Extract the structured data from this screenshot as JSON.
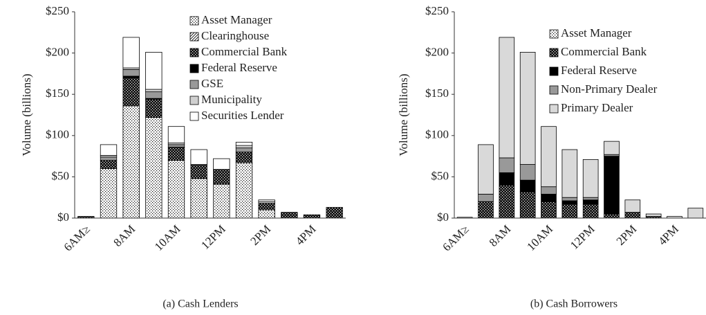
{
  "charts": [
    {
      "chart_data": {
        "type": "bar",
        "stacked": true,
        "title": "(a) Cash Lenders",
        "ylabel": "Volume (billions)",
        "categories": [
          "6AM≥",
          null,
          "8AM",
          null,
          "10AM",
          null,
          "12PM",
          null,
          "2PM",
          null,
          "4PM",
          null
        ],
        "ylim": [
          0,
          250
        ],
        "yticks": [
          {
            "value": 0,
            "label": "$0"
          },
          {
            "value": 50,
            "label": "$50"
          },
          {
            "value": 100,
            "label": "$100"
          },
          {
            "value": 150,
            "label": "$150"
          },
          {
            "value": 200,
            "label": "$200"
          },
          {
            "value": 250,
            "label": "$250"
          }
        ],
        "series": [
          {
            "name": "Asset Manager",
            "color": "#ffffff",
            "pattern": "dots",
            "values": [
              0,
              60,
              136,
              122,
              70,
              48,
              41,
              67,
              10,
              0,
              0,
              0
            ]
          },
          {
            "name": "Clearinghouse",
            "color": "#ffffff",
            "pattern": "hatch",
            "values": [
              0,
              0,
              0,
              0,
              0,
              0,
              0,
              0,
              0,
              0,
              0,
              0
            ]
          },
          {
            "name": "Commercial Bank",
            "color": "#111111",
            "pattern": "dots",
            "values": [
              2,
              10,
              34,
              22,
              16,
              16,
              18,
              13,
              8,
              7,
              4,
              13
            ]
          },
          {
            "name": "Federal Reserve",
            "color": "#000000",
            "values": [
              0,
              0,
              2,
              1,
              0,
              0,
              0,
              0,
              0,
              0,
              0,
              0
            ]
          },
          {
            "name": "GSE",
            "color": "#999999",
            "values": [
              0,
              4,
              8,
              8,
              3,
              0,
              0,
              5,
              0,
              0,
              0,
              0
            ]
          },
          {
            "name": "Municipality",
            "color": "#d0d0d0",
            "values": [
              0,
              2,
              2,
              3,
              2,
              1,
              0,
              3,
              2,
              0,
              0,
              0
            ]
          },
          {
            "name": "Securities Lender",
            "color": "#ffffff",
            "values": [
              0,
              13,
              37,
              45,
              20,
              18,
              13,
              4,
              2,
              0,
              0,
              0
            ]
          }
        ]
      }
    },
    {
      "chart_data": {
        "type": "bar",
        "stacked": true,
        "title": "(b) Cash Borrowers",
        "ylabel": "Volume (billions)",
        "categories": [
          "6AM≥",
          null,
          "8AM",
          null,
          "10AM",
          null,
          "12PM",
          null,
          "2PM",
          null,
          "4PM",
          null
        ],
        "ylim": [
          0,
          250
        ],
        "yticks": [
          {
            "value": 0,
            "label": "$0"
          },
          {
            "value": 50,
            "label": "$50"
          },
          {
            "value": 100,
            "label": "$100"
          },
          {
            "value": 150,
            "label": "$150"
          },
          {
            "value": 200,
            "label": "$200"
          },
          {
            "value": 250,
            "label": "$250"
          }
        ],
        "series": [
          {
            "name": "Asset Manager",
            "color": "#ffffff",
            "pattern": "dots",
            "values": [
              0,
              0,
              0,
              0,
              0,
              0,
              0,
              0,
              0,
              0,
              0,
              0
            ]
          },
          {
            "name": "Commercial Bank",
            "color": "#111111",
            "pattern": "dots",
            "values": [
              0,
              20,
              40,
              32,
              20,
              17,
              17,
              5,
              7,
              2,
              0,
              0
            ]
          },
          {
            "name": "Federal Reserve",
            "color": "#000000",
            "values": [
              0,
              0,
              15,
              14,
              9,
              4,
              5,
              70,
              0,
              0,
              0,
              0
            ]
          },
          {
            "name": "Non-Primary Dealer",
            "color": "#999999",
            "values": [
              0,
              9,
              18,
              19,
              9,
              4,
              3,
              2,
              0,
              0,
              0,
              0
            ]
          },
          {
            "name": "Primary Dealer",
            "color": "#d9d9d9",
            "values": [
              1,
              60,
              146,
              136,
              73,
              58,
              46,
              16,
              15,
              3,
              2,
              12
            ]
          }
        ]
      }
    }
  ]
}
